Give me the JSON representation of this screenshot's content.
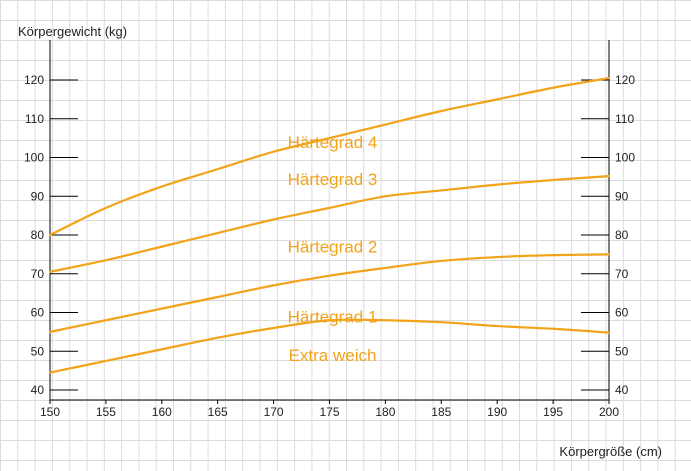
{
  "chart_data": {
    "type": "line",
    "xlabel": "Körpergröße (cm)",
    "ylabel": "Körpergewicht (kg)",
    "xlim": [
      150,
      200
    ],
    "ylim": [
      40,
      120
    ],
    "xticks": [
      "150",
      "155",
      "160",
      "165",
      "170",
      "175",
      "180",
      "185",
      "190",
      "195",
      "200"
    ],
    "yticks": [
      "40",
      "50",
      "60",
      "70",
      "80",
      "90",
      "100",
      "110",
      "120"
    ],
    "grid": true,
    "line_color": "#f2a31a",
    "x": [
      150,
      155,
      160,
      165,
      170,
      175,
      180,
      185,
      190,
      195,
      200
    ],
    "series": [
      {
        "name": "Härtegrad 4",
        "values": [
          80,
          87,
          92.5,
          97,
          101.5,
          105,
          108.5,
          112,
          115,
          118,
          120.5
        ]
      },
      {
        "name": "Härtegrad 3",
        "values": [
          70.5,
          73.5,
          77,
          80.5,
          84,
          87,
          90,
          91.5,
          93,
          94.2,
          95.2
        ]
      },
      {
        "name": "Härtegrad 2",
        "values": [
          55,
          58,
          61,
          64,
          67,
          69.5,
          71.5,
          73.3,
          74.3,
          74.8,
          75
        ]
      },
      {
        "name": "Härtegrad 1",
        "values": [
          44.5,
          47.5,
          50.5,
          53.5,
          56,
          58,
          58,
          57.5,
          56.5,
          55.8,
          54.8
        ]
      }
    ],
    "labels": [
      {
        "text": "Härtegrad 4",
        "x": 175,
        "y": 104
      },
      {
        "text": "Härtegrad 3",
        "x": 175,
        "y": 94.5
      },
      {
        "text": "Härtegrad 2",
        "x": 175,
        "y": 77
      },
      {
        "text": "Härtegrad 1",
        "x": 175,
        "y": 59
      },
      {
        "text": "Extra weich",
        "x": 175,
        "y": 49
      }
    ]
  }
}
